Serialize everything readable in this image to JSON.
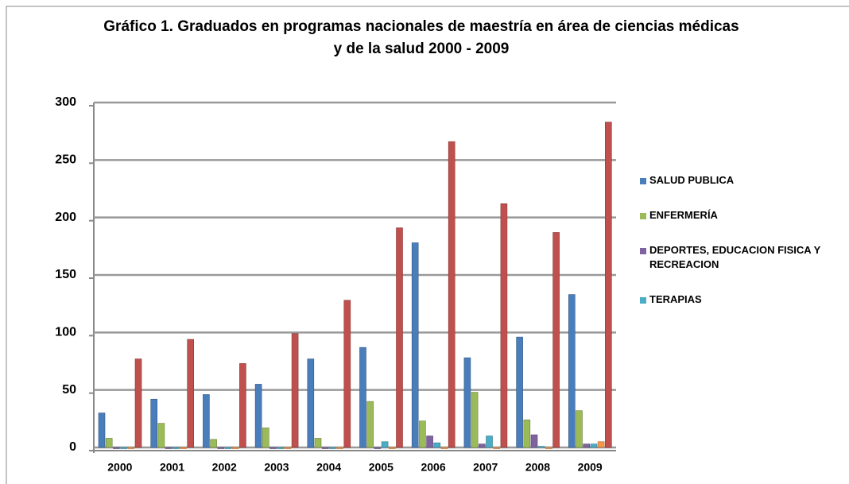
{
  "chart_data": {
    "type": "bar",
    "title": "Gráfico 1. Graduados en programas nacionales de maestría en área de ciencias médicas y de la salud 2000 - 2009",
    "categories": [
      "2000",
      "2001",
      "2002",
      "2003",
      "2004",
      "2005",
      "2006",
      "2007",
      "2008",
      "2009"
    ],
    "series": [
      {
        "name": "SALUD PUBLICA",
        "color": "#4a7ebb",
        "values": [
          30,
          42,
          46,
          55,
          77,
          87,
          178,
          78,
          96,
          133
        ]
      },
      {
        "name": "ENFERMERÍA",
        "color": "#9bbb59",
        "values": [
          8,
          21,
          7,
          17,
          8,
          40,
          23,
          48,
          24,
          32
        ]
      },
      {
        "name": "DEPORTES, EDUCACION FISICA Y RECREACION",
        "color": "#7f63a1",
        "values": [
          0,
          0,
          0,
          0,
          0,
          0,
          10,
          3,
          11,
          3
        ]
      },
      {
        "name": "TERAPIAS",
        "color": "#4bacc6",
        "values": [
          0,
          0,
          0,
          0,
          0,
          5,
          4,
          10,
          1,
          3
        ]
      },
      {
        "color": "#f79646",
        "values": [
          0,
          0,
          0,
          0,
          0,
          0,
          0,
          0,
          0,
          5
        ]
      },
      {
        "color": "#c0504d",
        "values": [
          77,
          94,
          73,
          99,
          128,
          191,
          266,
          212,
          187,
          283
        ]
      }
    ],
    "ylim": [
      0,
      300
    ],
    "yticks": [
      0,
      50,
      100,
      150,
      200,
      250,
      300
    ],
    "grid": true
  }
}
